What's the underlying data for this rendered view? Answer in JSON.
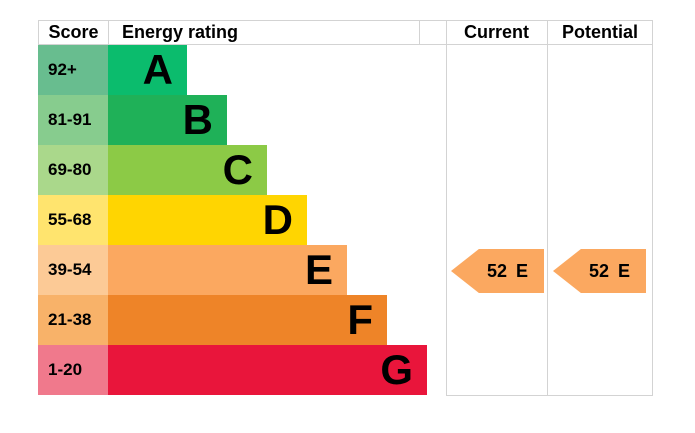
{
  "table": {
    "headers": {
      "score": "Score",
      "energy_rating": "Energy rating",
      "current": "Current",
      "potential": "Potential"
    }
  },
  "bands": [
    {
      "letter": "A",
      "score": "92+",
      "bar_color": "#0bbc6d",
      "score_color": "#68bd8f"
    },
    {
      "letter": "B",
      "score": "81-91",
      "bar_color": "#1fb158",
      "score_color": "#87cc8e"
    },
    {
      "letter": "C",
      "score": "69-80",
      "bar_color": "#8cca46",
      "score_color": "#aad88b"
    },
    {
      "letter": "D",
      "score": "55-68",
      "bar_color": "#ffd501",
      "score_color": "#ffe46e"
    },
    {
      "letter": "E",
      "score": "39-54",
      "bar_color": "#fba860",
      "score_color": "#fcca96"
    },
    {
      "letter": "F",
      "score": "21-38",
      "bar_color": "#ee8428",
      "score_color": "#f8b269"
    },
    {
      "letter": "G",
      "score": "1-20",
      "bar_color": "#e9153b",
      "score_color": "#f0798c"
    }
  ],
  "current": {
    "value": "52",
    "letter": "E",
    "arrow_color": "#fba860"
  },
  "potential": {
    "value": "52",
    "letter": "E",
    "arrow_color": "#fba860"
  },
  "colors": {
    "border": "#d3d3d3",
    "text": "#000000",
    "background": "#ffffff"
  },
  "chart_data": {
    "type": "bar",
    "title": "Energy rating",
    "categories": [
      "A",
      "B",
      "C",
      "D",
      "E",
      "F",
      "G"
    ],
    "score_ranges": [
      "92+",
      "81-91",
      "69-80",
      "55-68",
      "39-54",
      "21-38",
      "1-20"
    ],
    "band_colors": [
      "#0bbc6d",
      "#1fb158",
      "#8cca46",
      "#ffd501",
      "#fba860",
      "#ee8428",
      "#e9153b"
    ],
    "bar_relative_widths": [
      1,
      2,
      3,
      4,
      5,
      6,
      7
    ],
    "columns": [
      "Score",
      "Energy rating",
      "Current",
      "Potential"
    ],
    "current": {
      "score": 52,
      "band": "E"
    },
    "potential": {
      "score": 52,
      "band": "E"
    },
    "legend_position": "none",
    "grid": false
  }
}
